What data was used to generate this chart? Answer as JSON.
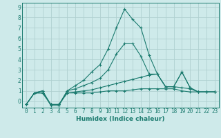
{
  "xlabel": "Humidex (Indice chaleur)",
  "x_values": [
    0,
    1,
    2,
    3,
    4,
    5,
    6,
    7,
    8,
    9,
    10,
    11,
    12,
    13,
    14,
    15,
    16,
    17,
    18,
    19,
    20,
    21,
    22,
    23
  ],
  "line1": [
    -0.3,
    0.8,
    0.8,
    -0.3,
    -0.3,
    0.8,
    0.8,
    0.8,
    0.8,
    0.9,
    1.0,
    1.0,
    1.0,
    1.1,
    1.2,
    1.2,
    1.2,
    1.2,
    1.2,
    1.0,
    0.9,
    0.9,
    0.9,
    0.9
  ],
  "line2": [
    -0.3,
    0.8,
    0.8,
    -0.3,
    -0.3,
    0.8,
    0.9,
    1.0,
    1.1,
    1.3,
    1.5,
    1.7,
    1.9,
    2.1,
    2.3,
    2.5,
    2.6,
    1.4,
    1.4,
    1.3,
    1.2,
    0.9,
    0.9,
    0.9
  ],
  "line3": [
    -0.3,
    0.8,
    1.0,
    -0.3,
    -0.3,
    1.0,
    1.2,
    1.5,
    1.8,
    2.2,
    3.0,
    4.5,
    5.5,
    5.5,
    4.3,
    2.6,
    2.6,
    1.4,
    1.4,
    2.8,
    1.3,
    0.9,
    0.9,
    0.9
  ],
  "line4": [
    -0.3,
    0.8,
    1.0,
    -0.4,
    -0.4,
    1.0,
    1.5,
    2.0,
    2.8,
    3.5,
    5.0,
    7.0,
    8.8,
    7.8,
    7.0,
    4.4,
    2.6,
    1.4,
    1.4,
    2.8,
    1.3,
    0.9,
    0.9,
    0.9
  ],
  "line_color": "#1a7a6e",
  "bg_color": "#ceeaea",
  "grid_color": "#b0d0d0",
  "ylim": [
    -0.6,
    9.4
  ],
  "xlim": [
    -0.5,
    23.5
  ],
  "yticks": [
    0,
    1,
    2,
    3,
    4,
    5,
    6,
    7,
    8,
    9
  ],
  "xticks": [
    0,
    1,
    2,
    3,
    4,
    5,
    6,
    7,
    8,
    9,
    10,
    11,
    12,
    13,
    14,
    15,
    16,
    17,
    18,
    19,
    20,
    21,
    22,
    23
  ],
  "tick_fontsize": 5.5,
  "xlabel_fontsize": 6.5
}
